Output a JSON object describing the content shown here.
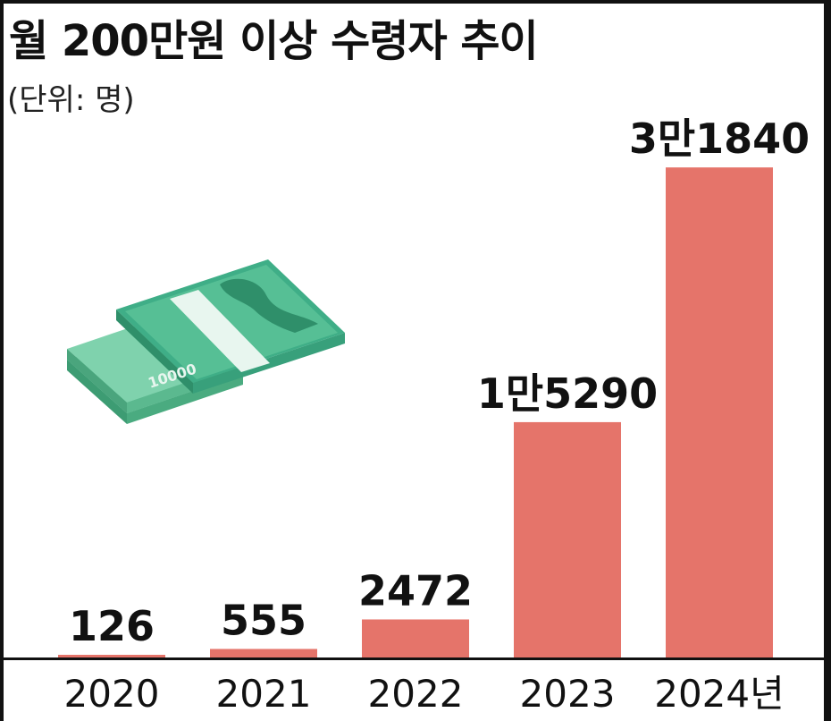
{
  "chart_data": {
    "type": "bar",
    "title": "월 200만원 이상 수령자 추이",
    "subtitle": "(단위: 명)",
    "categories": [
      "2020",
      "2021",
      "2022",
      "2023",
      "2024년"
    ],
    "values": [
      126,
      555,
      2472,
      15290,
      31840
    ],
    "data_labels": [
      "126",
      "555",
      "2472",
      "1만5290",
      "3만1840"
    ],
    "ylim": [
      0,
      34000
    ],
    "grid": false,
    "legend": "none",
    "bar_color": "#e5746a",
    "axis_color": "#111111"
  },
  "illustration": {
    "icon": "banknote-stack-icon",
    "text": "10000",
    "color": "#3fae87"
  }
}
